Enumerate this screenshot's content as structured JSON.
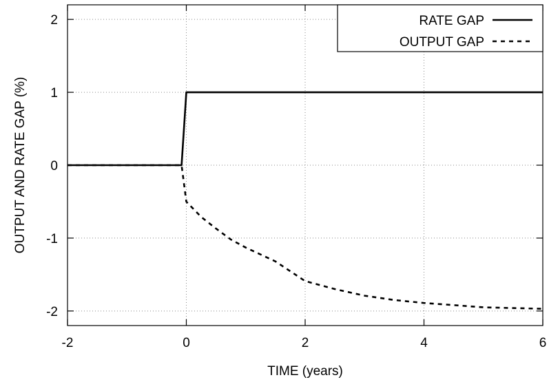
{
  "chart_data": {
    "type": "line",
    "title": "",
    "xlabel": "TIME (years)",
    "ylabel": "OUTPUT AND RATE GAP (%)",
    "xlim": [
      -2,
      6
    ],
    "ylim": [
      -2.2,
      2.2
    ],
    "x_ticks": [
      -2,
      0,
      2,
      4,
      6
    ],
    "y_ticks": [
      -2,
      -1,
      0,
      1,
      2
    ],
    "x_tick_labels": [
      "-2",
      "0",
      "2",
      "4",
      "6"
    ],
    "y_tick_labels": [
      "-2",
      "-1",
      "0",
      "1",
      "2"
    ],
    "grid": true,
    "legend": "top-right",
    "series": [
      {
        "name": "RATE GAP",
        "style": "solid",
        "color": "#000000",
        "x": [
          -2,
          -0.08,
          0,
          6
        ],
        "y": [
          0,
          0,
          1,
          1
        ]
      },
      {
        "name": "OUTPUT GAP",
        "style": "dashed",
        "color": "#000000",
        "x": [
          -2,
          -0.08,
          0,
          0.25,
          0.5,
          0.75,
          1,
          1.5,
          2,
          2.5,
          3,
          3.5,
          4,
          4.5,
          5,
          5.5,
          6
        ],
        "y": [
          0,
          0,
          -0.5,
          -0.71,
          -0.87,
          -1.02,
          -1.13,
          -1.32,
          -1.59,
          -1.7,
          -1.79,
          -1.85,
          -1.89,
          -1.92,
          -1.95,
          -1.96,
          -1.97
        ]
      }
    ]
  }
}
